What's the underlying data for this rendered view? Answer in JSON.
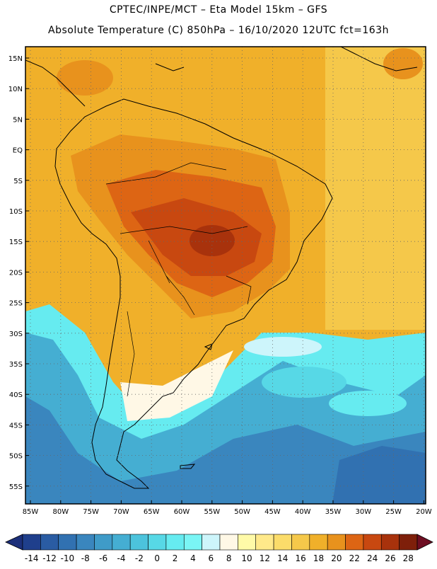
{
  "title_line1": "CPTEC/INPE/MCT –  Eta Model 15km – GFS",
  "title_line2": "Absolute Temperature (C) 850hPa – 16/10/2020 12UTC fct=163h",
  "lat_labels": [
    "15N",
    "10N",
    "5N",
    "EQ",
    "5S",
    "10S",
    "15S",
    "20S",
    "25S",
    "30S",
    "35S",
    "40S",
    "45S",
    "50S",
    "55S"
  ],
  "lon_labels": [
    "85W",
    "80W",
    "75W",
    "70W",
    "65W",
    "60W",
    "55W",
    "50W",
    "45W",
    "40W",
    "35W",
    "30W",
    "25W",
    "20W"
  ],
  "colorbar": {
    "labels": [
      "-14",
      "-12",
      "-10",
      "-8",
      "-6",
      "-4",
      "-2",
      "0",
      "2",
      "4",
      "6",
      "8",
      "10",
      "12",
      "14",
      "16",
      "18",
      "20",
      "22",
      "24",
      "26",
      "28"
    ],
    "colors": [
      "#1f3f8c",
      "#2a5ca3",
      "#3171b1",
      "#3a86be",
      "#3f9bc8",
      "#45aed2",
      "#4cc3dc",
      "#57d8e6",
      "#66ebf0",
      "#7af5f5",
      "#cdf5fb",
      "#fff8e6",
      "#fffaa8",
      "#ffe98a",
      "#fbdc6a",
      "#f5c84a",
      "#f0b02a",
      "#e8921d",
      "#dd6514",
      "#c84810",
      "#a8320c",
      "#7e1f0a"
    ],
    "low_color": "#1c2f7a",
    "high_color": "#6e0e22"
  },
  "colors": {
    "warm": "#f0b02a",
    "hot": "#e8921d",
    "very_hot": "#c84810",
    "cold": "#3a86be",
    "mild": "#66ebf0"
  }
}
